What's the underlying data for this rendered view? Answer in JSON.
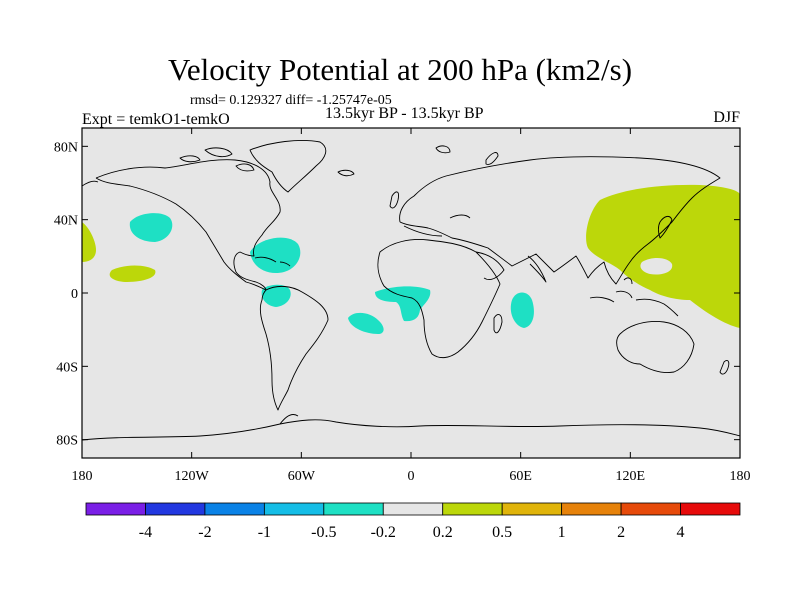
{
  "title": "Velocity Potential at 200 hPa (km2/s)",
  "stats": "rmsd= 0.129327 diff= -1.25747e-05",
  "left_label": "Expt = temkO1-temkO",
  "center_label": "13.5kyr BP - 13.5kyr BP",
  "right_label": "DJF",
  "map": {
    "lon_range": [
      -180,
      180
    ],
    "lat_range": [
      -90,
      90
    ],
    "x_ticks": [
      {
        "lon": -180,
        "label": "180"
      },
      {
        "lon": -120,
        "label": "120W"
      },
      {
        "lon": -60,
        "label": "60W"
      },
      {
        "lon": 0,
        "label": "0"
      },
      {
        "lon": 60,
        "label": "60E"
      },
      {
        "lon": 120,
        "label": "120E"
      },
      {
        "lon": 180,
        "label": "180"
      }
    ],
    "y_ticks": [
      {
        "lat": 80,
        "label": "80N"
      },
      {
        "lat": 40,
        "label": "40N"
      },
      {
        "lat": 0,
        "label": "0"
      },
      {
        "lat": -40,
        "label": "40S"
      },
      {
        "lat": -80,
        "label": "80S"
      }
    ],
    "background_color": "#e6e6e6",
    "positive_color": "#bcd70a",
    "negative_color": "#1ee0c4"
  },
  "colorbar": {
    "colors": [
      "#7a1fe6",
      "#2238e0",
      "#0a82e6",
      "#15bde6",
      "#1ee0c4",
      "#e6e6e6",
      "#bcd70a",
      "#e0b40a",
      "#e6820a",
      "#e64a0a",
      "#e60a0a"
    ],
    "labels": [
      "-4",
      "-2",
      "-1",
      "-0.5",
      "-0.2",
      "0.2",
      "0.5",
      "1",
      "2",
      "4"
    ]
  }
}
